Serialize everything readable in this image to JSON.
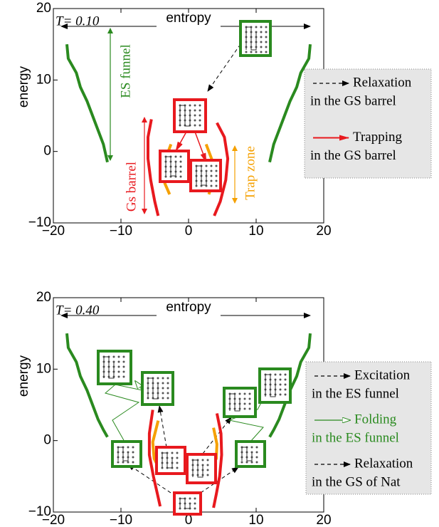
{
  "chart_data": [
    {
      "type": "line",
      "title": "T= 0.10",
      "xlabel": "entropy",
      "ylabel": "energy",
      "xlim": [
        -20,
        20
      ],
      "ylim": [
        -10,
        20
      ],
      "xticks": [
        {
          "value": -20,
          "label": "−20"
        },
        {
          "value": -10,
          "label": "−10"
        },
        0,
        10,
        20
      ],
      "yticks": [
        {
          "value": -10,
          "label": "−10"
        },
        0,
        10,
        20
      ],
      "series": [
        {
          "name": "ES funnel",
          "color": "#2a8a1f",
          "x": [
            -18,
            -17.8,
            -16.6,
            -16,
            -15,
            -14.2,
            -13.4,
            -12.6,
            -12,
            null,
            12,
            12.6,
            13.4,
            14.2,
            15,
            16,
            16.6,
            17.8,
            18
          ],
          "values": [
            15,
            13,
            11,
            9,
            7,
            5,
            3,
            1,
            -1.5,
            null,
            -1.5,
            1,
            3,
            5,
            7,
            9,
            11,
            13,
            15
          ]
        },
        {
          "name": "Gs barrel",
          "color": "#e8191e",
          "x": [
            -5.5,
            -6,
            -6,
            -5.6,
            -5,
            -4.5,
            null,
            4.2,
            5.3,
            5.8,
            5.5,
            4.7,
            3.8
          ],
          "values": [
            4.5,
            2,
            -1,
            -4,
            -7,
            -9,
            null,
            4,
            2,
            -1,
            -4,
            -7,
            -9
          ]
        },
        {
          "name": "Trap zone",
          "color": "#f5a000",
          "x": [
            -2.6,
            -3.4,
            -3.8,
            -3.5,
            -2.8,
            null,
            2.6,
            3.4,
            3.8,
            3.5,
            3
          ],
          "values": [
            1,
            -1,
            -3,
            -4.5,
            -6,
            null,
            1,
            -1,
            -3,
            -4.5,
            -6
          ]
        }
      ],
      "legend": [
        {
          "lines": [
            "Relaxation",
            "in the GS barrel"
          ],
          "color": "#000000",
          "text_color": "#000000",
          "dashed": true
        },
        {
          "lines": [
            "Trapping",
            "in the GS barrel"
          ],
          "color": "#e8191e",
          "text_color": "#000000",
          "dashed": false
        }
      ]
    },
    {
      "type": "line",
      "title": "T= 0.40",
      "xlabel": "entropy",
      "ylabel": "energy",
      "xlim": [
        -20,
        20
      ],
      "ylim": [
        -10,
        20
      ],
      "xticks": [
        {
          "value": -20,
          "label": "−20"
        },
        {
          "value": -10,
          "label": "−10"
        },
        0,
        10,
        20
      ],
      "yticks": [
        {
          "value": -10,
          "label": "−10"
        },
        0,
        10,
        20
      ],
      "series": [
        {
          "color": "#2a8a1f",
          "x": [
            -18,
            -17.8,
            -16.6,
            -16,
            -15,
            -14.2,
            -13.4,
            -12.6,
            -12,
            null,
            12,
            12.6,
            13.4,
            14.2,
            15,
            16,
            16.6,
            17.8,
            18
          ],
          "values": [
            15,
            13,
            11,
            9,
            7,
            5,
            3,
            1.5,
            0.5,
            null,
            0.5,
            1.5,
            3,
            5,
            7,
            9,
            11,
            13,
            15
          ]
        },
        {
          "color": "#e8191e",
          "x": [
            -5.3,
            -5.8,
            -5.8,
            -5.2,
            -4.6,
            -4.2,
            null,
            4.2,
            4.8,
            4.9,
            4.6,
            4.1,
            3.7
          ],
          "values": [
            4.3,
            1,
            -2,
            -5,
            -7.5,
            -9.2,
            null,
            3.8,
            1,
            -2,
            -5,
            -7.5,
            -9.4
          ]
        },
        {
          "color": "#f5a000",
          "x": [
            -4.5,
            -5.3,
            -5.1,
            -4.2,
            null,
            3.7,
            4.2,
            4.1,
            3.3
          ],
          "values": [
            2.8,
            -0.2,
            -2.5,
            -4.2,
            null,
            1.8,
            -0.5,
            -2.5,
            -4.2
          ]
        }
      ],
      "legend": [
        {
          "lines": [
            "Excitation",
            "in the ES funnel"
          ],
          "color": "#000000",
          "text_color": "#000000",
          "dashed": true
        },
        {
          "lines": [
            "Folding",
            "in the ES funnel"
          ],
          "color": "#2a8a1f",
          "text_color": "#2a8a1f",
          "dashed": false
        },
        {
          "lines": [
            "Relaxation",
            "in the GS of Nat"
          ],
          "color": "#000000",
          "text_color": "#000000",
          "dashed": true
        }
      ]
    }
  ]
}
